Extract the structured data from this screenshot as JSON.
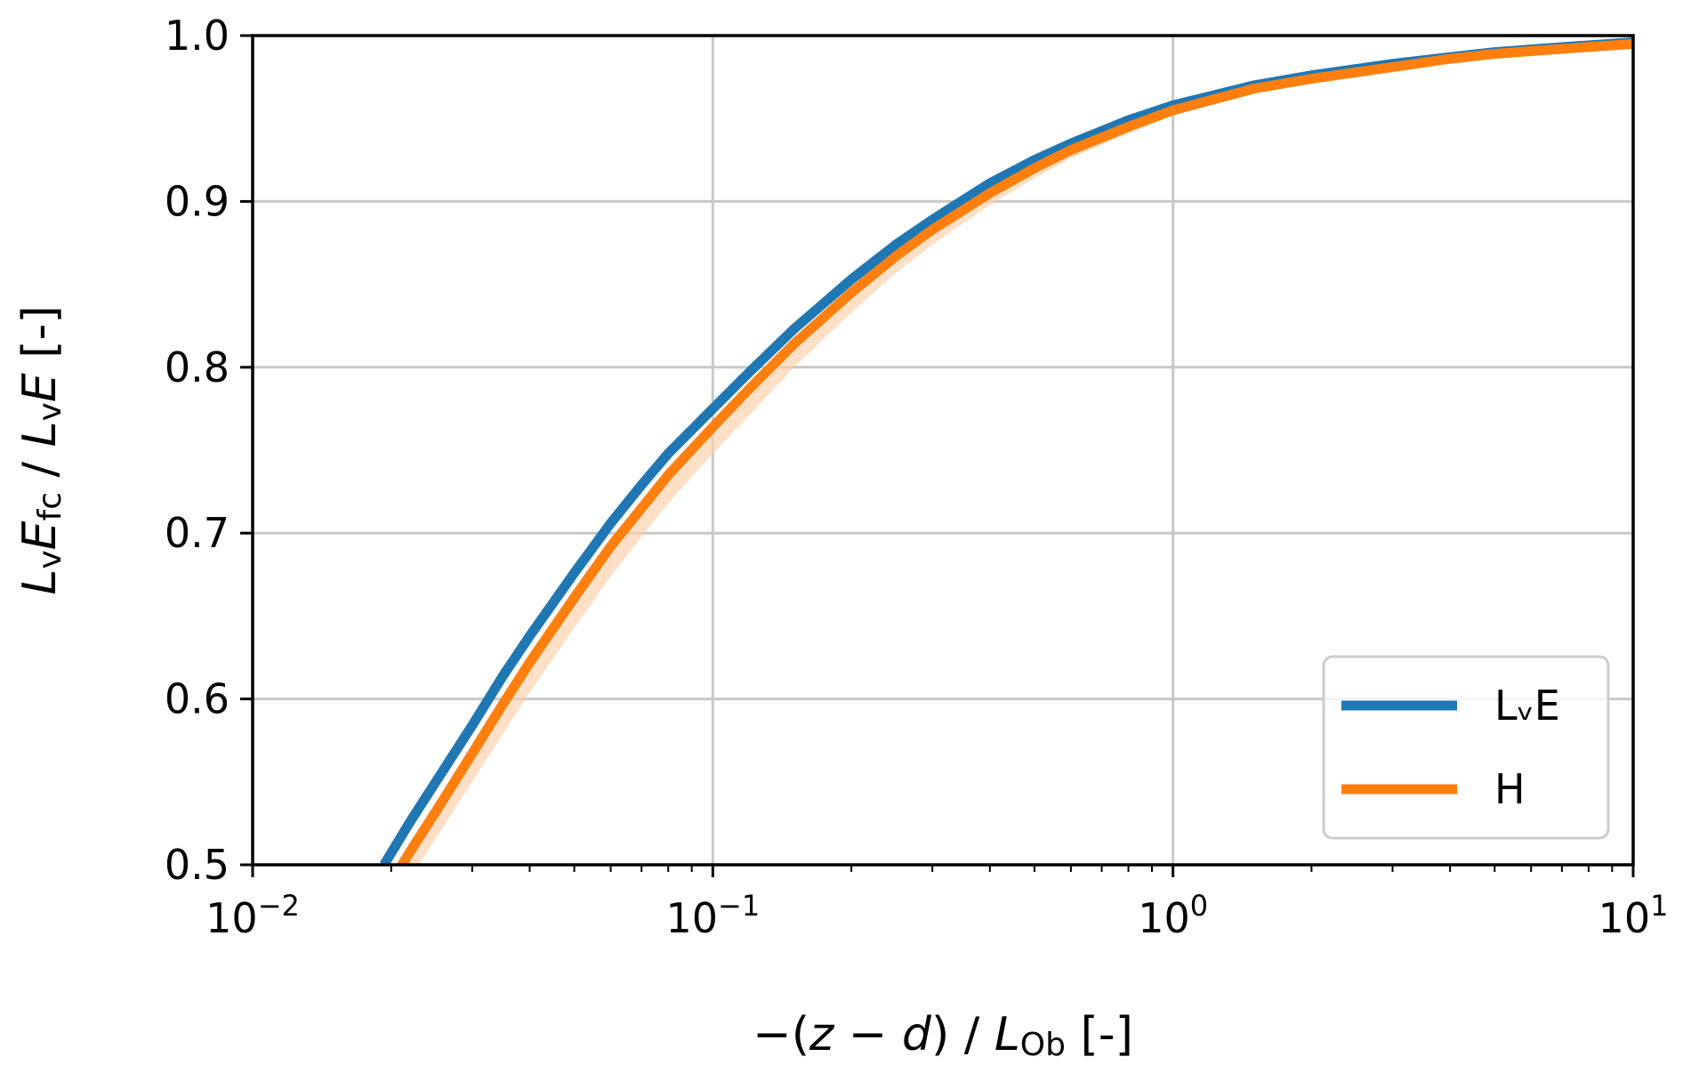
{
  "chart_data": {
    "type": "line",
    "xscale": "log",
    "xlim": [
      0.01,
      10
    ],
    "ylim": [
      0.5,
      1.0
    ],
    "grid": true,
    "legend_position": "lower-right",
    "xlabel": {
      "prefix": "−(",
      "z": "z",
      "minus": " − ",
      "d": "d",
      "mid": ") / ",
      "L": "L",
      "sub": "Ob",
      "suffix": " [-]"
    },
    "ylabel": {
      "L1": "L",
      "v1": "v",
      "E1": "E",
      "fc": "fc",
      "sep": " / ",
      "L2": "L",
      "v2": "v",
      "E2": "E",
      "suffix": " [-]"
    },
    "x_ticks": [
      {
        "value": 0.01,
        "base": "10",
        "exp": "−2"
      },
      {
        "value": 0.1,
        "base": "10",
        "exp": "−1"
      },
      {
        "value": 1,
        "base": "10",
        "exp": "0"
      },
      {
        "value": 10,
        "base": "10",
        "exp": "1"
      }
    ],
    "y_ticks": [
      {
        "value": 0.5,
        "label": "0.5"
      },
      {
        "value": 0.6,
        "label": "0.6"
      },
      {
        "value": 0.7,
        "label": "0.7"
      },
      {
        "value": 0.8,
        "label": "0.8"
      },
      {
        "value": 0.9,
        "label": "0.9"
      },
      {
        "value": 1.0,
        "label": "1.0"
      }
    ],
    "x": [
      0.0193,
      0.022,
      0.025,
      0.03,
      0.035,
      0.04,
      0.05,
      0.06,
      0.07,
      0.08,
      0.1,
      0.12,
      0.15,
      0.2,
      0.25,
      0.3,
      0.4,
      0.5,
      0.6,
      0.8,
      1.0,
      1.5,
      2,
      3,
      4,
      5,
      7,
      10
    ],
    "series": [
      {
        "name": "LᵥE",
        "color": "#1f77b4",
        "values": [
          0.5,
          0.526,
          0.55,
          0.584,
          0.614,
          0.638,
          0.676,
          0.706,
          0.729,
          0.748,
          0.775,
          0.797,
          0.823,
          0.853,
          0.874,
          0.889,
          0.911,
          0.925,
          0.935,
          0.949,
          0.958,
          0.97,
          0.976,
          0.983,
          0.987,
          0.99,
          0.993,
          0.996
        ]
      },
      {
        "name": "H",
        "color": "#ff7f0e",
        "band_color": "#ffcfa8",
        "values": [
          0.482,
          0.508,
          0.532,
          0.567,
          0.597,
          0.622,
          0.661,
          0.692,
          0.715,
          0.735,
          0.764,
          0.787,
          0.814,
          0.845,
          0.867,
          0.883,
          0.905,
          0.92,
          0.931,
          0.945,
          0.955,
          0.968,
          0.974,
          0.981,
          0.986,
          0.989,
          0.992,
          0.995
        ],
        "band_lower": [
          0.466,
          0.492,
          0.516,
          0.55,
          0.579,
          0.604,
          0.643,
          0.674,
          0.698,
          0.718,
          0.748,
          0.771,
          0.8,
          0.833,
          0.857,
          0.874,
          0.898,
          0.914,
          0.926,
          0.941,
          0.952,
          0.966,
          0.973,
          0.98,
          0.985,
          0.988,
          0.991,
          0.994
        ],
        "band_upper": [
          0.488,
          0.514,
          0.538,
          0.573,
          0.603,
          0.628,
          0.667,
          0.697,
          0.72,
          0.74,
          0.768,
          0.791,
          0.818,
          0.848,
          0.869,
          0.885,
          0.907,
          0.921,
          0.932,
          0.946,
          0.956,
          0.969,
          0.975,
          0.982,
          0.986,
          0.989,
          0.992,
          0.996
        ]
      }
    ]
  }
}
